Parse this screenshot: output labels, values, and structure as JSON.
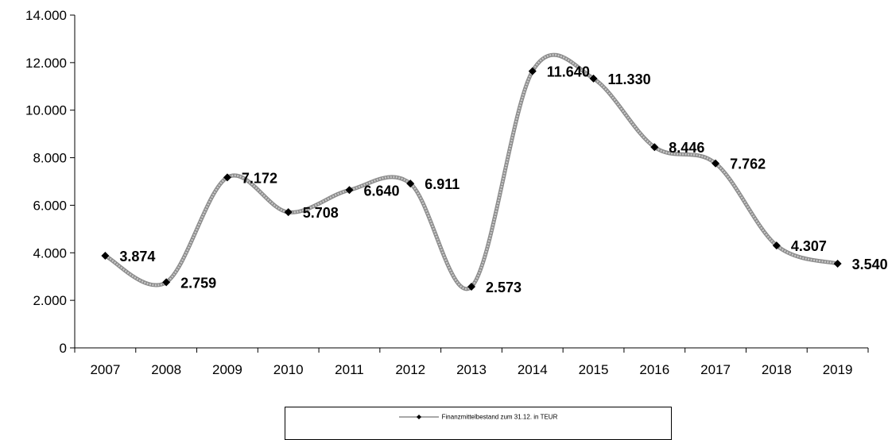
{
  "chart_data": {
    "type": "line",
    "x": [
      "2007",
      "2008",
      "2009",
      "2010",
      "2011",
      "2012",
      "2013",
      "2014",
      "2015",
      "2016",
      "2017",
      "2018",
      "2019"
    ],
    "series": [
      {
        "name": "Finanzmittelbestand zum 31.12. in TEUR",
        "values": [
          3874,
          2759,
          7172,
          5708,
          6640,
          6911,
          2573,
          11640,
          11330,
          8446,
          7762,
          4307,
          3540
        ],
        "labels": [
          "3.874",
          "2.759",
          "7.172",
          "5.708",
          "6.640",
          "6.911",
          "2.573",
          "11.640",
          "11.330",
          "8.446",
          "7.762",
          "4.307",
          "3.540"
        ],
        "color": "#a8a8a8",
        "marker_color": "#000000",
        "smooth": true
      }
    ],
    "ylim": [
      0,
      14000
    ],
    "yticks": [
      0,
      2000,
      4000,
      6000,
      8000,
      10000,
      12000,
      14000
    ],
    "ytick_labels": [
      "0",
      "2.000",
      "4.000",
      "6.000",
      "8.000",
      "10.000",
      "12.000",
      "14.000"
    ],
    "grid": false,
    "legend_position": "bottom-center"
  }
}
